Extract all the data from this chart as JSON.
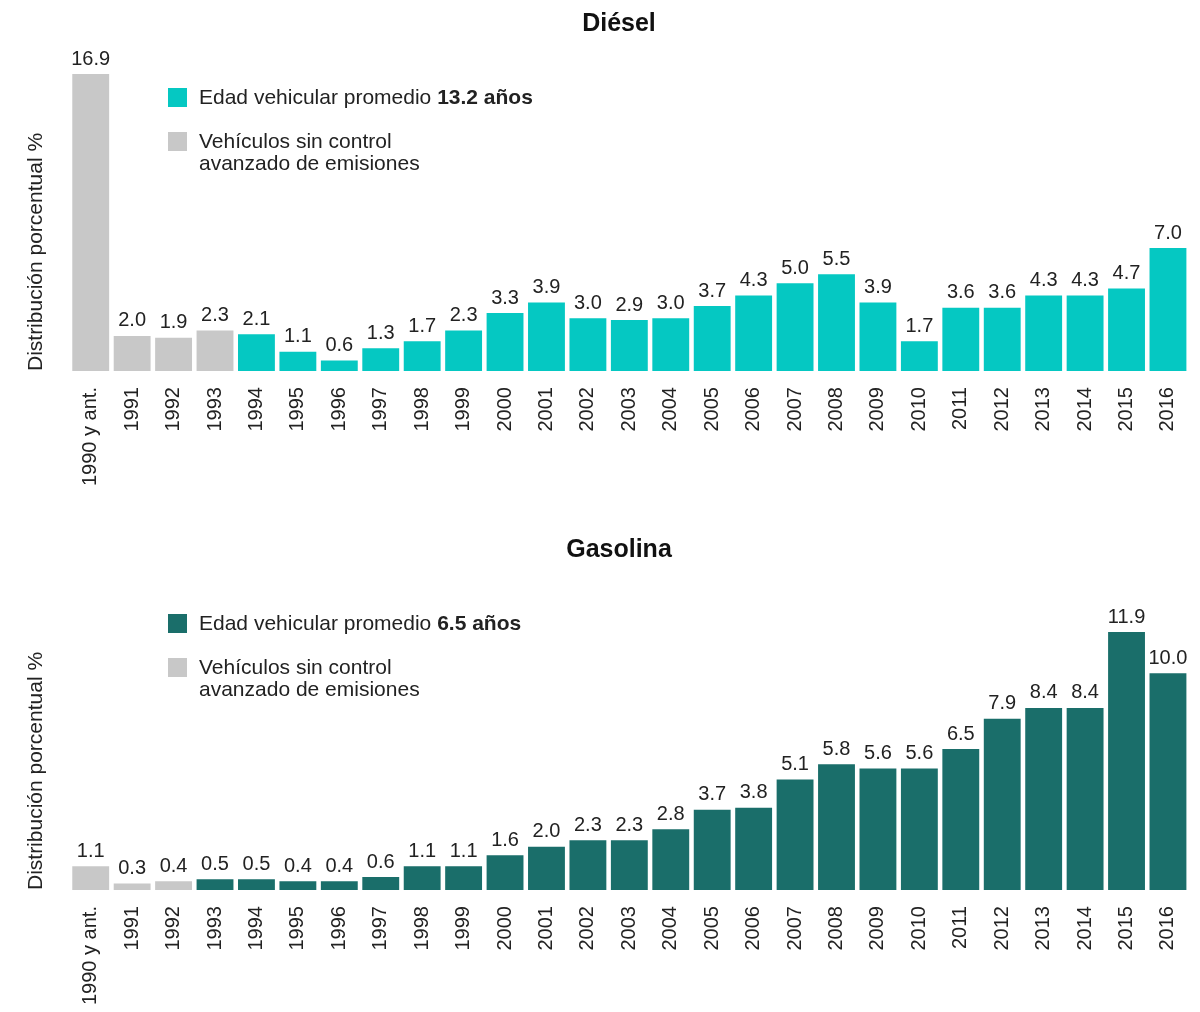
{
  "chart_data": [
    {
      "type": "bar",
      "title": "Diésel",
      "ylabel": "Distribución porcentual %",
      "legend": "top left",
      "tick_labels": "x",
      "categories": [
        "1990 y ant.",
        "1991",
        "1992",
        "1993",
        "1994",
        "1995",
        "1996",
        "1997",
        "1998",
        "1999",
        "2000",
        "2001",
        "2002",
        "2003",
        "2004",
        "2005",
        "2006",
        "2007",
        "2008",
        "2009",
        "2010",
        "2011",
        "2012",
        "2013",
        "2014",
        "2015",
        "2016"
      ],
      "series": [
        {
          "name": "Edad vehicular promedio 13.2 años",
          "color": "#05c8c2",
          "values": [
            null,
            null,
            null,
            null,
            2.1,
            1.1,
            0.6,
            1.3,
            1.7,
            2.3,
            3.3,
            3.9,
            3.0,
            2.9,
            3.0,
            3.7,
            4.3,
            5.0,
            5.5,
            3.9,
            1.7,
            3.6,
            3.6,
            4.3,
            4.3,
            4.7,
            7.0
          ],
          "value_labels": [
            null,
            null,
            null,
            null,
            "2.1",
            "1.1",
            "0.6",
            "1.3",
            "1.7",
            "2.3",
            "3.3",
            "3.9",
            "3.0",
            "2.9",
            "3.0",
            "3.7",
            "4.3",
            "5.0",
            "5.5",
            "3.9",
            "1.7",
            "3.6",
            "3.6",
            "4.3",
            "4.3",
            "4.7",
            "7.0"
          ]
        },
        {
          "name": "Vehículos sin control avanzado de emisiones",
          "color": "#c8c8c8",
          "values": [
            16.9,
            2.0,
            1.9,
            2.3,
            null,
            null,
            null,
            null,
            null,
            null,
            null,
            null,
            null,
            null,
            null,
            null,
            null,
            null,
            null,
            null,
            null,
            null,
            null,
            null,
            null,
            null,
            null
          ],
          "value_labels": [
            "16.9",
            "2.0",
            "1.9",
            "2.3",
            null,
            null,
            null,
            null,
            null,
            null,
            null,
            null,
            null,
            null,
            null,
            null,
            null,
            null,
            null,
            null,
            null,
            null,
            null,
            null,
            null,
            null,
            null
          ]
        }
      ]
    },
    {
      "type": "bar",
      "title": "Gasolina",
      "ylabel": "Distribución porcentual %",
      "legend": "top left",
      "tick_labels": "x",
      "categories": [
        "1990 y ant.",
        "1991",
        "1992",
        "1993",
        "1994",
        "1995",
        "1996",
        "1997",
        "1998",
        "1999",
        "2000",
        "2001",
        "2002",
        "2003",
        "2004",
        "2005",
        "2006",
        "2007",
        "2008",
        "2009",
        "2010",
        "2011",
        "2012",
        "2013",
        "2014",
        "2015",
        "2016"
      ],
      "series": [
        {
          "name": "Edad vehicular promedio 6.5 años",
          "color": "#1a6e6a",
          "values": [
            null,
            null,
            null,
            0.5,
            0.5,
            0.4,
            0.4,
            0.6,
            1.1,
            1.1,
            1.6,
            2.0,
            2.3,
            2.3,
            2.8,
            3.7,
            3.8,
            5.1,
            5.8,
            5.6,
            5.6,
            6.5,
            7.9,
            8.4,
            8.4,
            11.9,
            10.0
          ],
          "value_labels": [
            null,
            null,
            null,
            "0.5",
            "0.5",
            "0.4",
            "0.4",
            "0.6",
            "1.1",
            "1.1",
            "1.6",
            "2.0",
            "2.3",
            "2.3",
            "2.8",
            "3.7",
            "3.8",
            "5.1",
            "5.8",
            "5.6",
            "5.6",
            "6.5",
            "7.9",
            "8.4",
            "8.4",
            "11.9",
            "10.0"
          ]
        },
        {
          "name": "Vehículos sin control avanzado de emisiones",
          "color": "#c8c8c8",
          "values": [
            1.1,
            0.3,
            0.4,
            null,
            null,
            null,
            null,
            null,
            null,
            null,
            null,
            null,
            null,
            null,
            null,
            null,
            null,
            null,
            null,
            null,
            null,
            null,
            null,
            null,
            null,
            null,
            null
          ],
          "value_labels": [
            "1.1",
            "0.3",
            "0.4",
            null,
            null,
            null,
            null,
            null,
            null,
            null,
            null,
            null,
            null,
            null,
            null,
            null,
            null,
            null,
            null,
            null,
            null,
            null,
            null,
            null,
            null,
            null,
            null
          ]
        }
      ]
    }
  ]
}
